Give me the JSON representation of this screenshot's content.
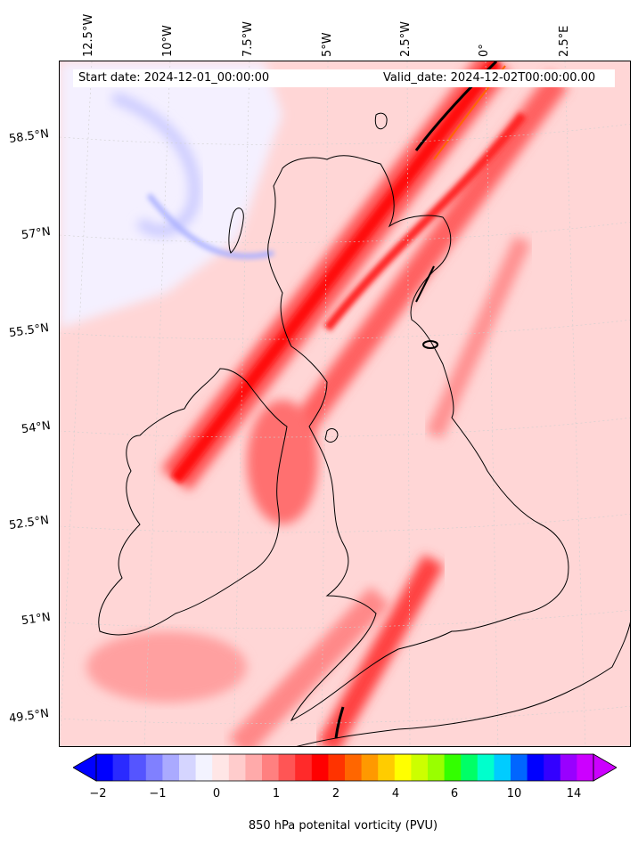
{
  "map": {
    "header": {
      "start_date": "Start date: 2024-12-01_00:00:00",
      "valid_date": "Valid_date: 2024-12-02T00:00:00.00"
    },
    "longitude_labels": [
      "12.5°W",
      "10°W",
      "7.5°W",
      "5°W",
      "2.5°W",
      "0°",
      "2.5°E"
    ],
    "latitude_labels": [
      "58.5°N",
      "57°N",
      "55.5°N",
      "54°N",
      "52.5°N",
      "51°N",
      "49.5°N"
    ],
    "region": "British Isles",
    "field": "850 hPa potential vorticity",
    "colors": {
      "negative": "#3030ff",
      "zero": "#ffffff",
      "light_positive": "#ffd0d0",
      "medium_positive": "#ff8080",
      "strong_positive": "#ff0000",
      "coast": "#000000"
    }
  },
  "colorbar": {
    "title": "850 hPa potenital vorticity (PVU)",
    "ticks": [
      "−2",
      "−1",
      "0",
      "1",
      "2",
      "4",
      "6",
      "10",
      "14"
    ],
    "colors": [
      "#0000ff",
      "#2a2aff",
      "#5555ff",
      "#8080ff",
      "#aaaaff",
      "#d5d5ff",
      "#f3f3ff",
      "#ffe6e6",
      "#ffcccc",
      "#ffaaaa",
      "#ff8080",
      "#ff5555",
      "#ff2a2a",
      "#ff0000",
      "#ff3300",
      "#ff6600",
      "#ff9900",
      "#ffcc00",
      "#ffff00",
      "#ccff00",
      "#99ff00",
      "#33ff00",
      "#00ff66",
      "#00ffcc",
      "#00ccff",
      "#0066ff",
      "#0000ff",
      "#3300ff",
      "#9900ff",
      "#cc00ff"
    ]
  }
}
